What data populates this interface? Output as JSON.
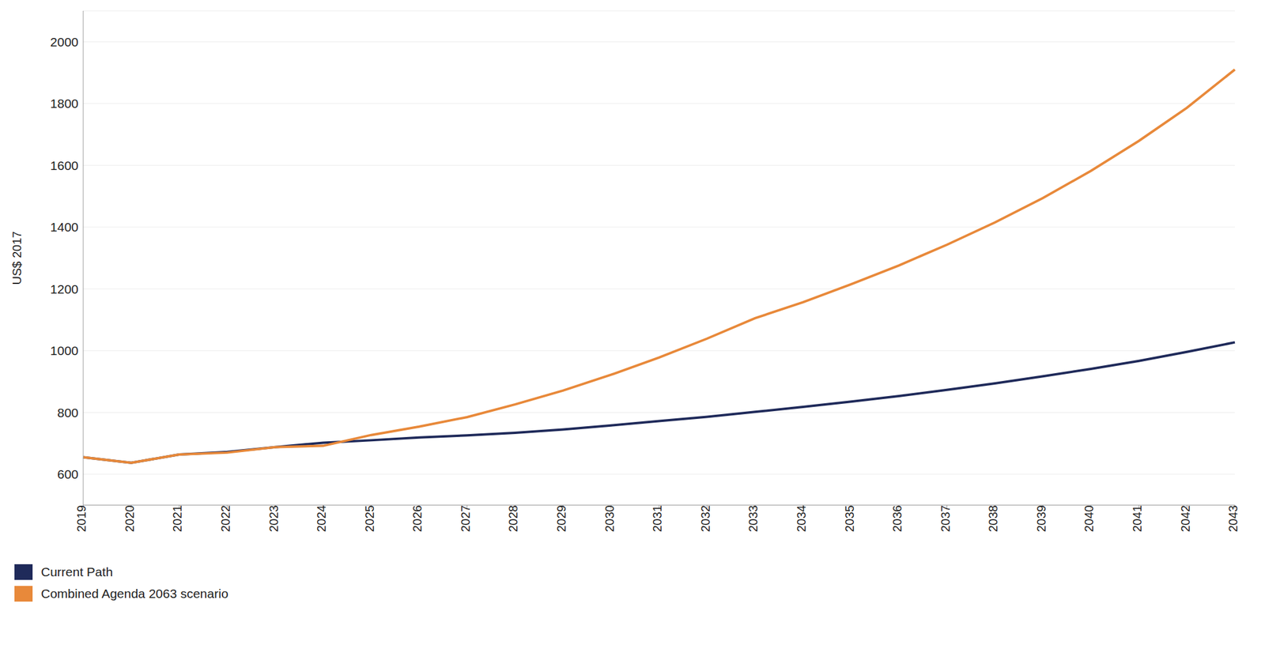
{
  "chart_data": {
    "type": "line",
    "y_label": "US$ 2017",
    "categories": [
      "2019",
      "2020",
      "2021",
      "2022",
      "2023",
      "2024",
      "2025",
      "2026",
      "2027",
      "2028",
      "2029",
      "2030",
      "2031",
      "2032",
      "2033",
      "2034",
      "2035",
      "2036",
      "2037",
      "2038",
      "2039",
      "2040",
      "2041",
      "2042",
      "2043"
    ],
    "series": [
      {
        "name": "Current Path",
        "color": "#1f2a5a",
        "values": [
          655,
          637,
          664,
          672,
          688,
          702,
          710,
          719,
          726,
          734,
          745,
          758,
          772,
          786,
          802,
          818,
          835,
          853,
          873,
          894,
          917,
          941,
          967,
          996,
          1027
        ]
      },
      {
        "name": "Combined Agenda 2063 scenario",
        "color": "#e8893a",
        "values": [
          655,
          637,
          664,
          670,
          688,
          692,
          727,
          754,
          785,
          826,
          871,
          922,
          978,
          1039,
          1105,
          1157,
          1215,
          1276,
          1343,
          1415,
          1494,
          1582,
          1679,
          1786,
          1910
        ]
      }
    ],
    "ylim": [
      500,
      2100
    ],
    "yticks": [
      600,
      800,
      1000,
      1200,
      1400,
      1600,
      1800,
      2000
    ],
    "grid": true,
    "legend": "bottom"
  }
}
